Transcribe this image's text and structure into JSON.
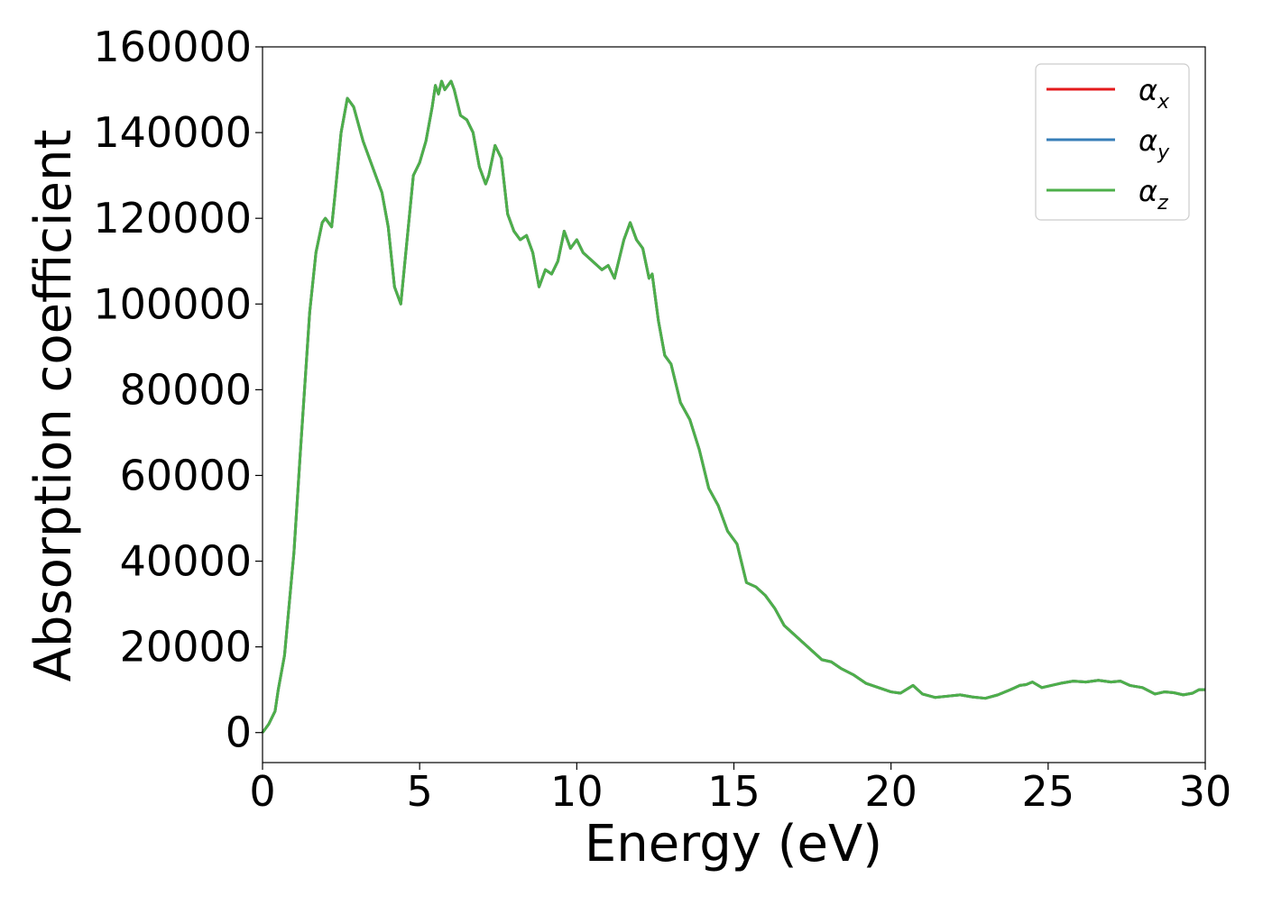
{
  "chart_data": {
    "type": "line",
    "title": "",
    "xlabel": "Energy (eV)",
    "ylabel": "Absorption coefficient",
    "xlim": [
      0,
      30
    ],
    "ylim": [
      -7000,
      160000
    ],
    "x_ticks": [
      0,
      5,
      10,
      15,
      20,
      25,
      30
    ],
    "y_ticks": [
      0,
      20000,
      40000,
      60000,
      80000,
      100000,
      120000,
      140000,
      160000
    ],
    "grid": false,
    "legend_position": "top-right",
    "colors": {
      "x": "#e41a1c",
      "y": "#377eb8",
      "z": "#4daf4a"
    },
    "x": [
      0,
      0.2,
      0.4,
      0.5,
      0.7,
      1.0,
      1.2,
      1.5,
      1.7,
      1.9,
      2.0,
      2.2,
      2.3,
      2.5,
      2.7,
      2.9,
      3.2,
      3.5,
      3.8,
      4.0,
      4.2,
      4.4,
      4.6,
      4.8,
      5.0,
      5.2,
      5.4,
      5.5,
      5.6,
      5.7,
      5.8,
      5.9,
      6.0,
      6.1,
      6.3,
      6.5,
      6.7,
      6.9,
      7.1,
      7.2,
      7.4,
      7.6,
      7.8,
      8.0,
      8.2,
      8.4,
      8.6,
      8.8,
      9.0,
      9.2,
      9.4,
      9.6,
      9.8,
      10.0,
      10.2,
      10.5,
      10.8,
      11.0,
      11.2,
      11.5,
      11.7,
      11.9,
      12.1,
      12.3,
      12.4,
      12.6,
      12.8,
      13.0,
      13.3,
      13.6,
      13.9,
      14.2,
      14.5,
      14.8,
      15.1,
      15.4,
      15.7,
      16.0,
      16.3,
      16.6,
      16.9,
      17.2,
      17.5,
      17.8,
      18.1,
      18.4,
      18.8,
      19.2,
      19.6,
      20.0,
      20.3,
      20.7,
      21.0,
      21.4,
      21.8,
      22.2,
      22.6,
      23.0,
      23.4,
      23.8,
      24.1,
      24.3,
      24.5,
      24.8,
      25.1,
      25.4,
      25.8,
      26.2,
      26.6,
      27.0,
      27.3,
      27.6,
      28.0,
      28.4,
      28.7,
      29.0,
      29.3,
      29.6,
      29.8,
      30.0
    ],
    "series": [
      {
        "name": "αx",
        "values": [
          0,
          2000,
          5000,
          10000,
          18000,
          42000,
          65000,
          98000,
          112000,
          119000,
          120000,
          118000,
          125000,
          140000,
          148000,
          146000,
          138000,
          132000,
          126000,
          118000,
          104000,
          100000,
          115000,
          130000,
          133000,
          138000,
          146000,
          151000,
          149000,
          152000,
          150000,
          151000,
          152000,
          150000,
          144000,
          143000,
          140000,
          132000,
          128000,
          130000,
          137000,
          134000,
          121000,
          117000,
          115000,
          116000,
          112000,
          104000,
          108000,
          107000,
          110000,
          117000,
          113000,
          115000,
          112000,
          110000,
          108000,
          109000,
          106000,
          115000,
          119000,
          115000,
          113000,
          106000,
          107000,
          96000,
          88000,
          86000,
          77000,
          73000,
          66000,
          57000,
          53000,
          47000,
          44000,
          35000,
          34000,
          32000,
          29000,
          25000,
          23000,
          21000,
          19000,
          17000,
          16500,
          15000,
          13500,
          11500,
          10500,
          9500,
          9200,
          11000,
          9000,
          8200,
          8500,
          8800,
          8300,
          8000,
          8800,
          10000,
          11000,
          11200,
          11800,
          10500,
          11000,
          11500,
          12000,
          11800,
          12200,
          11800,
          12000,
          11000,
          10500,
          9000,
          9500,
          9300,
          8800,
          9200,
          10000,
          10000
        ]
      },
      {
        "name": "αy",
        "values": [
          0,
          2000,
          5000,
          10000,
          18000,
          42000,
          65000,
          98000,
          112000,
          119000,
          120000,
          118000,
          125000,
          140000,
          148000,
          146000,
          138000,
          132000,
          126000,
          118000,
          104000,
          100000,
          115000,
          130000,
          133000,
          138000,
          146000,
          151000,
          149000,
          152000,
          150000,
          151000,
          152000,
          150000,
          144000,
          143000,
          140000,
          132000,
          128000,
          130000,
          137000,
          134000,
          121000,
          117000,
          115000,
          116000,
          112000,
          104000,
          108000,
          107000,
          110000,
          117000,
          113000,
          115000,
          112000,
          110000,
          108000,
          109000,
          106000,
          115000,
          119000,
          115000,
          113000,
          106000,
          107000,
          96000,
          88000,
          86000,
          77000,
          73000,
          66000,
          57000,
          53000,
          47000,
          44000,
          35000,
          34000,
          32000,
          29000,
          25000,
          23000,
          21000,
          19000,
          17000,
          16500,
          15000,
          13500,
          11500,
          10500,
          9500,
          9200,
          11000,
          9000,
          8200,
          8500,
          8800,
          8300,
          8000,
          8800,
          10000,
          11000,
          11200,
          11800,
          10500,
          11000,
          11500,
          12000,
          11800,
          12200,
          11800,
          12000,
          11000,
          10500,
          9000,
          9500,
          9300,
          8800,
          9200,
          10000,
          10000
        ]
      },
      {
        "name": "αz",
        "values": [
          0,
          2000,
          5000,
          10000,
          18000,
          42000,
          65000,
          98000,
          112000,
          119000,
          120000,
          118000,
          125000,
          140000,
          148000,
          146000,
          138000,
          132000,
          126000,
          118000,
          104000,
          100000,
          115000,
          130000,
          133000,
          138000,
          146000,
          151000,
          149000,
          152000,
          150000,
          151000,
          152000,
          150000,
          144000,
          143000,
          140000,
          132000,
          128000,
          130000,
          137000,
          134000,
          121000,
          117000,
          115000,
          116000,
          112000,
          104000,
          108000,
          107000,
          110000,
          117000,
          113000,
          115000,
          112000,
          110000,
          108000,
          109000,
          106000,
          115000,
          119000,
          115000,
          113000,
          106000,
          107000,
          96000,
          88000,
          86000,
          77000,
          73000,
          66000,
          57000,
          53000,
          47000,
          44000,
          35000,
          34000,
          32000,
          29000,
          25000,
          23000,
          21000,
          19000,
          17000,
          16500,
          15000,
          13500,
          11500,
          10500,
          9500,
          9200,
          11000,
          9000,
          8200,
          8500,
          8800,
          8300,
          8000,
          8800,
          10000,
          11000,
          11200,
          11800,
          10500,
          11000,
          11500,
          12000,
          11800,
          12200,
          11800,
          12000,
          11000,
          10500,
          9000,
          9500,
          9300,
          8800,
          9200,
          10000,
          10000
        ]
      }
    ],
    "legend": [
      {
        "base": "α",
        "sub": "x",
        "color": "#e41a1c"
      },
      {
        "base": "α",
        "sub": "y",
        "color": "#377eb8"
      },
      {
        "base": "α",
        "sub": "z",
        "color": "#4daf4a"
      }
    ]
  }
}
